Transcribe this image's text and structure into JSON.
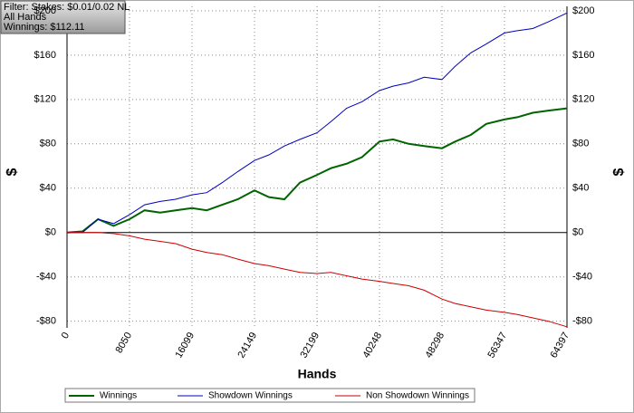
{
  "chart_data": {
    "type": "line",
    "info": [
      "Filter: Stakes: $0.01/0.02 NL",
      "All Hands",
      "Winnings: $112.11"
    ],
    "xlabel": "Hands",
    "ylabel": "$",
    "x": [
      0,
      2000,
      4000,
      6000,
      8050,
      10000,
      12000,
      14000,
      16099,
      18000,
      20000,
      22000,
      24149,
      26000,
      28000,
      30000,
      32199,
      34000,
      36000,
      38000,
      40248,
      42000,
      44000,
      46000,
      48298,
      50000,
      52000,
      54000,
      56347,
      58000,
      60000,
      62000,
      64397
    ],
    "series": [
      {
        "name": "Winnings",
        "color": "#006400",
        "values": [
          0,
          1,
          12,
          6,
          12,
          20,
          18,
          20,
          22,
          20,
          25,
          30,
          38,
          32,
          30,
          45,
          52,
          58,
          62,
          68,
          82,
          84,
          80,
          78,
          76,
          82,
          88,
          98,
          102,
          104,
          108,
          110,
          112
        ]
      },
      {
        "name": "Showdown Winnings",
        "color": "#0000c0",
        "values": [
          0,
          0,
          12,
          8,
          16,
          25,
          28,
          30,
          34,
          36,
          45,
          55,
          65,
          70,
          78,
          84,
          90,
          100,
          112,
          118,
          128,
          132,
          135,
          140,
          138,
          150,
          162,
          170,
          180,
          182,
          184,
          190,
          198
        ]
      },
      {
        "name": "Non Showdown Winnings",
        "color": "#cc0000",
        "values": [
          0,
          0,
          0,
          -1,
          -3,
          -6,
          -8,
          -10,
          -15,
          -18,
          -20,
          -24,
          -28,
          -30,
          -33,
          -36,
          -37,
          -36,
          -39,
          -42,
          -44,
          -46,
          -48,
          -52,
          -60,
          -64,
          -67,
          -70,
          -72,
          -74,
          -77,
          -80,
          -85
        ]
      }
    ],
    "xlim": [
      0,
      64397
    ],
    "xticks": [
      0,
      8050,
      16099,
      24149,
      32199,
      40248,
      48298,
      56347,
      64397
    ],
    "ylim": [
      -86,
      204
    ],
    "yticks": [
      {
        "value": -80,
        "label": "-$80"
      },
      {
        "value": -40,
        "label": "-$40"
      },
      {
        "value": 0,
        "label": "$0"
      },
      {
        "value": 40,
        "label": "$40"
      },
      {
        "value": 80,
        "label": "$80"
      },
      {
        "value": 120,
        "label": "$120"
      },
      {
        "value": 160,
        "label": "$160"
      },
      {
        "value": 200,
        "label": "$200"
      }
    ],
    "grid": true
  }
}
